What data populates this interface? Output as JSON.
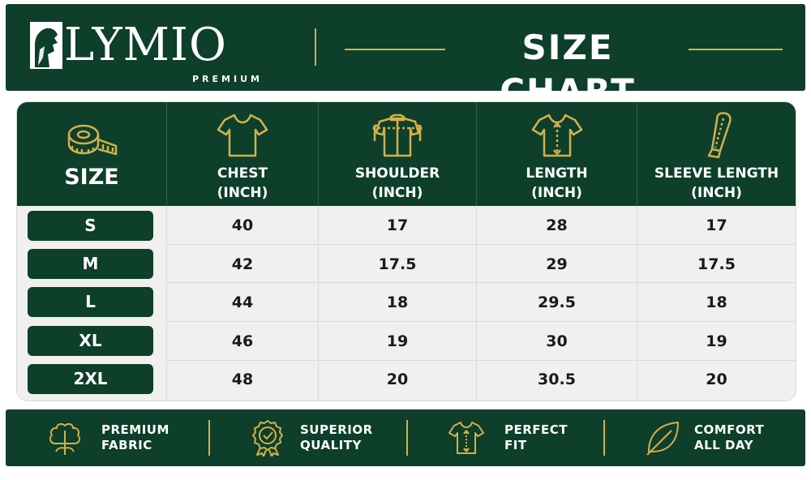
{
  "brand": {
    "name": "LYMIO",
    "tagline": "PREMIUM"
  },
  "title": "SIZE CHART",
  "colors": {
    "primary": "#0d3f2b",
    "accent": "#d4b04a",
    "background": "#f0f0ee"
  },
  "table": {
    "size_header": "SIZE",
    "columns": [
      {
        "line1": "CHEST",
        "line2": "(INCH)",
        "icon": "tshirt-icon"
      },
      {
        "line1": "SHOULDER",
        "line2": "(INCH)",
        "icon": "shoulder-measure-icon"
      },
      {
        "line1": "LENGTH",
        "line2": "(INCH)",
        "icon": "length-measure-icon"
      },
      {
        "line1": "SLEEVE LENGTH",
        "line2": "(INCH)",
        "icon": "sleeve-icon"
      }
    ],
    "rows": [
      {
        "size": "S",
        "values": [
          "40",
          "17",
          "28",
          "17"
        ]
      },
      {
        "size": "M",
        "values": [
          "42",
          "17.5",
          "29",
          "17.5"
        ]
      },
      {
        "size": "L",
        "values": [
          "44",
          "18",
          "29.5",
          "18"
        ]
      },
      {
        "size": "XL",
        "values": [
          "46",
          "19",
          "30",
          "19"
        ]
      },
      {
        "size": "2XL",
        "values": [
          "48",
          "20",
          "30.5",
          "20"
        ]
      }
    ]
  },
  "features": [
    {
      "line1": "PREMIUM",
      "line2": "FABRIC",
      "icon": "cotton-icon"
    },
    {
      "line1": "SUPERIOR",
      "line2": "QUALITY",
      "icon": "quality-badge-icon"
    },
    {
      "line1": "PERFECT",
      "line2": "FIT",
      "icon": "fit-tshirt-icon"
    },
    {
      "line1": "COMFORT",
      "line2": "ALL DAY",
      "icon": "leaf-icon"
    }
  ]
}
